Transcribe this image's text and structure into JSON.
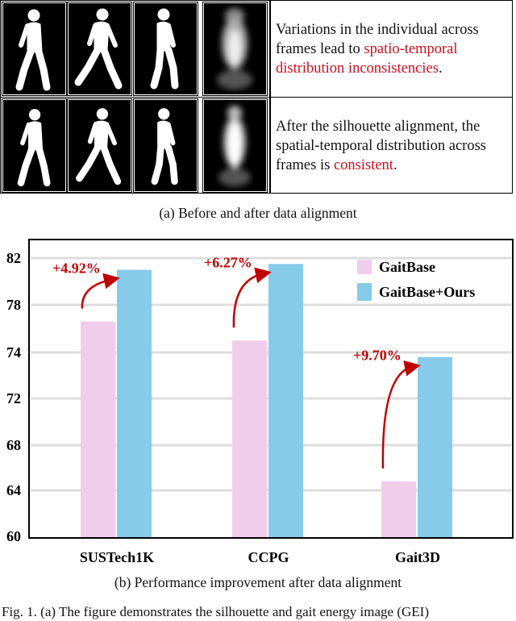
{
  "panel_a": {
    "rows": [
      {
        "text_plain": "Variations in the individual across frames lead to ",
        "text_red": "spatio-temporal distribution inconsistencies",
        "text_end": "."
      },
      {
        "text_plain": "After the silhouette alignment, the spatial-temporal distribution across frames is ",
        "text_red": "consistent",
        "text_end": "."
      }
    ],
    "caption": "(a) Before and after data alignment"
  },
  "chart_data": {
    "type": "bar",
    "categories": [
      "SUSTech1K",
      "CCPG",
      "Gait3D"
    ],
    "series": [
      {
        "name": "GaitBase",
        "values": [
          76.6,
          75.0,
          64.8
        ],
        "color": "#f0cdea"
      },
      {
        "name": "GaitBase+Ours",
        "values": [
          81.0,
          81.5,
          73.8
        ],
        "color": "#87cbea"
      }
    ],
    "yticks": [
      60,
      64,
      68,
      72,
      74,
      78,
      82
    ],
    "ylim": [
      60,
      83
    ],
    "grid": true,
    "legend": "top-right",
    "annotations": [
      "+4.92%",
      "+6.27%",
      "+9.70%"
    ],
    "annotation_color": "#c00000"
  },
  "panel_b": {
    "caption": "(b) Performance improvement after data alignment"
  },
  "figure_caption": "Fig. 1.  (a) The figure demonstrates the silhouette and gait energy image (GEI)"
}
